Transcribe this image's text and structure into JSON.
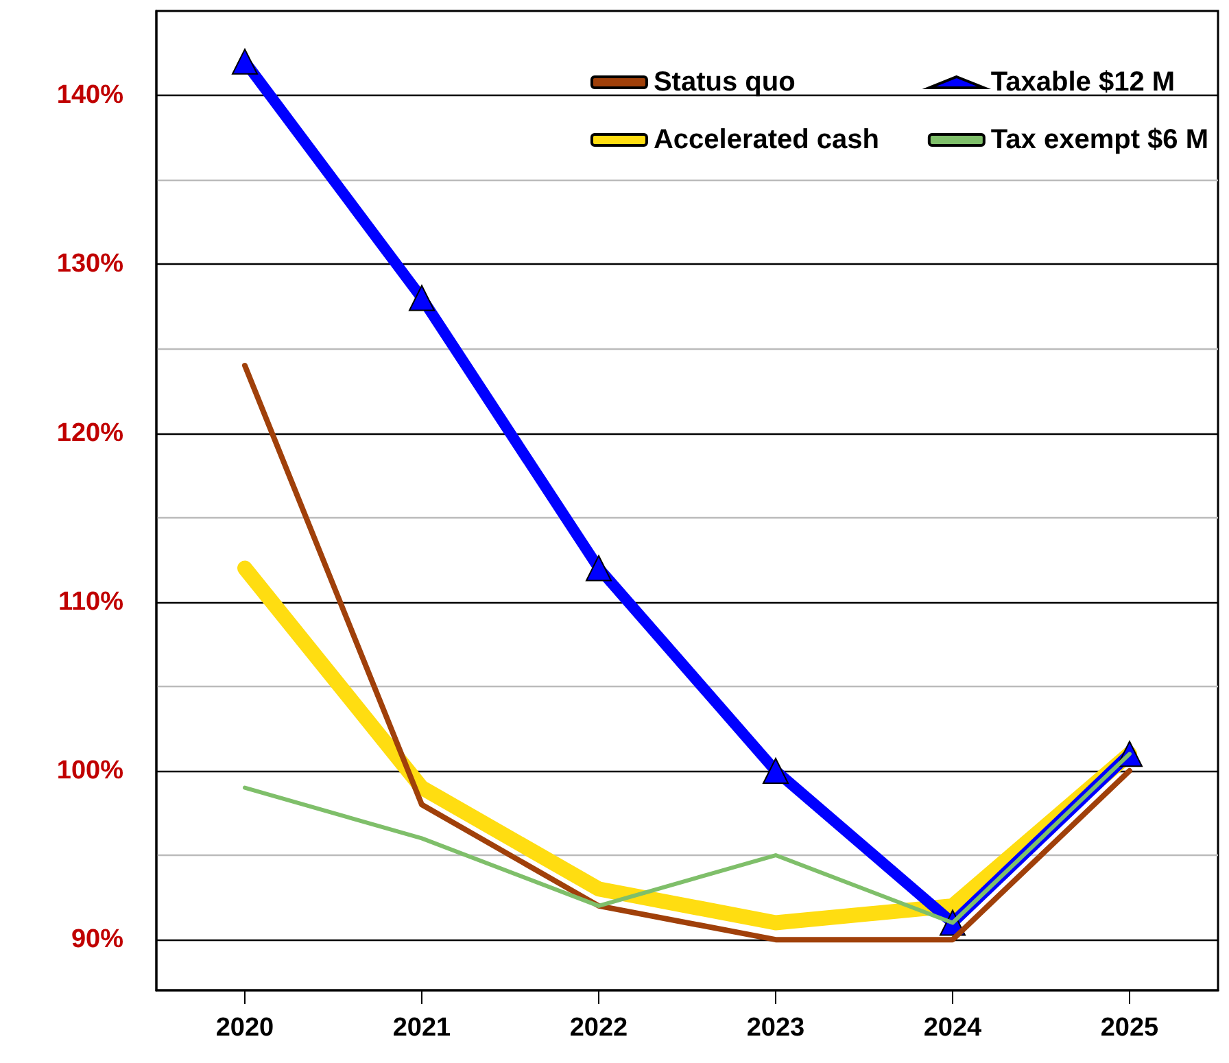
{
  "chart_data": {
    "type": "line",
    "categories": [
      "2020",
      "2021",
      "2022",
      "2023",
      "2024",
      "2025"
    ],
    "ylim": [
      87,
      145
    ],
    "yticks": [
      {
        "value": 90,
        "label": "90%"
      },
      {
        "value": 95,
        "label": null
      },
      {
        "value": 100,
        "label": "100%"
      },
      {
        "value": 105,
        "label": null
      },
      {
        "value": 110,
        "label": "110%"
      },
      {
        "value": 115,
        "label": null
      },
      {
        "value": 120,
        "label": "120%"
      },
      {
        "value": 125,
        "label": null
      },
      {
        "value": 130,
        "label": "130%"
      },
      {
        "value": 135,
        "label": null
      },
      {
        "value": 140,
        "label": "140%"
      }
    ],
    "grid": "y",
    "legend": "top right",
    "line_style": "solid",
    "series": [
      {
        "name": "Status quo",
        "color": "#a0400a",
        "values": [
          124,
          98,
          92,
          90,
          90,
          100
        ],
        "marker": "none"
      },
      {
        "name": "Taxable $12 M",
        "color": "#0000ff",
        "values": [
          142,
          128,
          112,
          100,
          91,
          101
        ],
        "marker": "triangle"
      },
      {
        "name": "Accelerated cash",
        "color": "#ffdd11",
        "values": [
          112,
          99,
          93,
          91,
          92,
          101
        ],
        "marker": "none"
      },
      {
        "name": "Tax exempt $6 M",
        "color": "#7fbf6a",
        "values": [
          99,
          96,
          92,
          95,
          91,
          101
        ],
        "marker": "none"
      }
    ]
  }
}
